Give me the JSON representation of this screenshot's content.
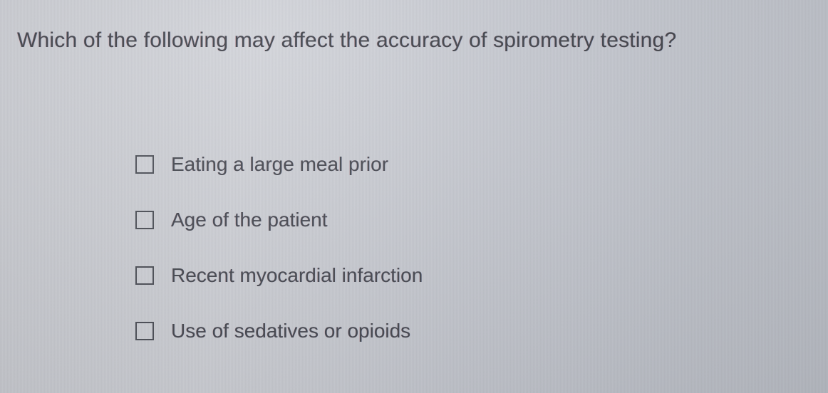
{
  "question": {
    "text": "Which of the following may affect the accuracy of spirometry testing?",
    "fontsize": 30,
    "color": "#3a3d44"
  },
  "options": [
    {
      "label": "Eating a large meal prior",
      "checked": false
    },
    {
      "label": "Age of the patient",
      "checked": false
    },
    {
      "label": "Recent myocardial infarction",
      "checked": false
    },
    {
      "label": "Use of sedatives or opioids",
      "checked": false
    }
  ],
  "style": {
    "checkbox_border_color": "#4a4d55",
    "option_fontsize": 28,
    "option_color": "#44474f",
    "background_tint": "#c8cad0"
  }
}
